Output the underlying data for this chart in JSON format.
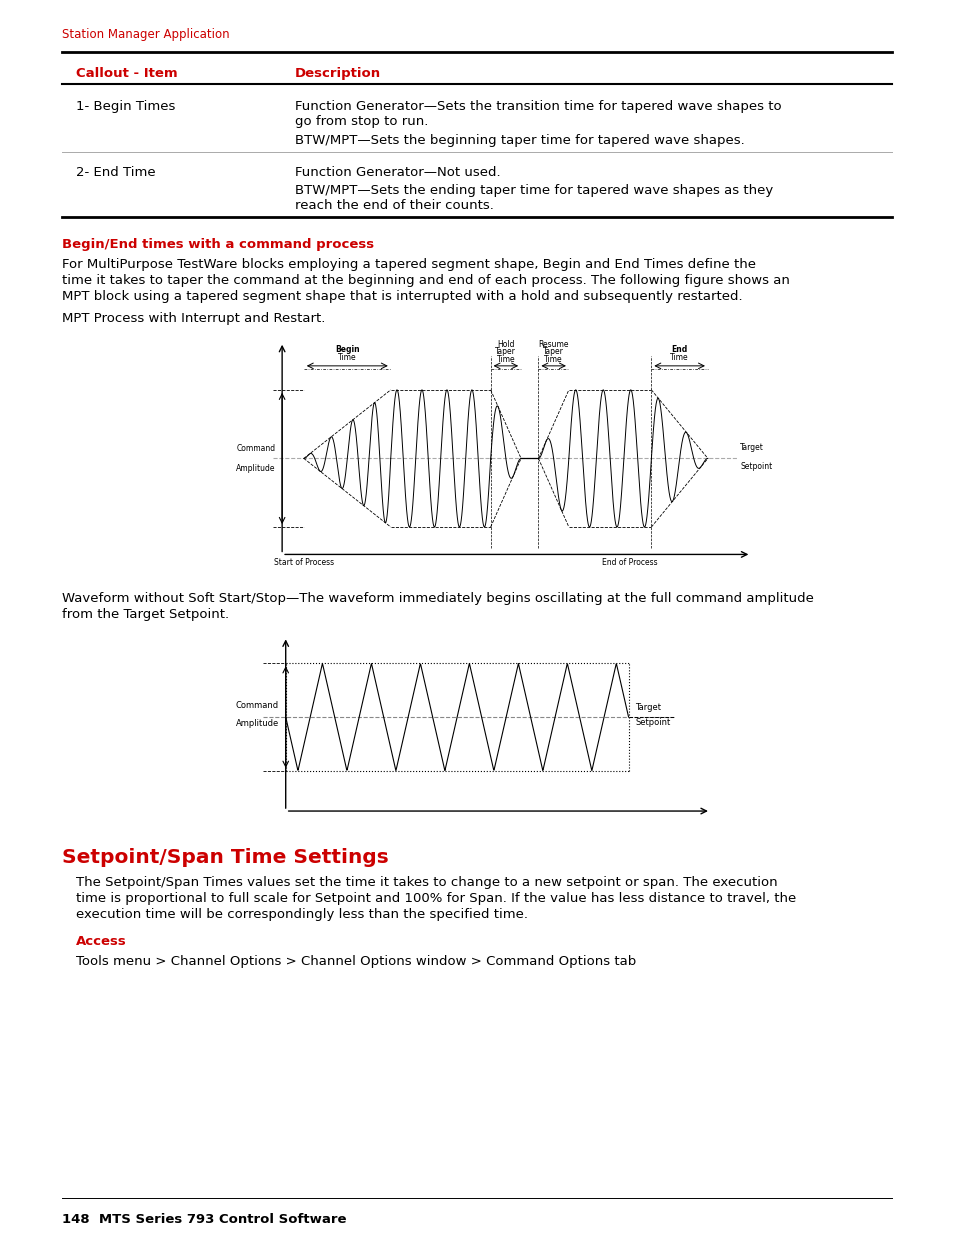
{
  "header_text": "Station Manager Application",
  "header_color": "#cc0000",
  "table_header_col1": "Callout - Item",
  "table_header_col2": "Description",
  "table_header_color": "#cc0000",
  "table_row1_col1": "1- Begin Times",
  "table_row1_col2_line1": "Function Generator—Sets the transition time for tapered wave shapes to",
  "table_row1_col2_line2": "go from stop to run.",
  "table_row1_col2_line3": "BTW/MPT—Sets the beginning taper time for tapered wave shapes.",
  "table_row2_col1": "2- End Time",
  "table_row2_col2_line1": "Function Generator—Not used.",
  "table_row2_col2_line2": "BTW/MPT—Sets the ending taper time for tapered wave shapes as they",
  "table_row2_col2_line3": "reach the end of their counts.",
  "section1_heading": "Begin/End times with a command process",
  "section1_heading_color": "#cc0000",
  "para1_line1": "For MultiPurpose TestWare blocks employing a tapered segment shape, Begin and End Times define the",
  "para1_line2": "time it takes to taper the command at the beginning and end of each process. The following figure shows an",
  "para1_line3": "MPT block using a tapered segment shape that is interrupted with a hold and subsequently restarted.",
  "caption1": "MPT Process with Interrupt and Restart.",
  "waveform_caption_line1": "Waveform without Soft Start/Stop—The waveform immediately begins oscillating at the full command amplitude",
  "waveform_caption_line2": "from the Target Setpoint.",
  "section2_heading": "Setpoint/Span Time Settings",
  "section2_heading_color": "#cc0000",
  "para2_line1": "The Setpoint/Span Times values set the time it takes to change to a new setpoint or span. The execution",
  "para2_line2": "time is proportional to full scale for Setpoint and 100% for Span. If the value has less distance to travel, the",
  "para2_line3": "execution time will be correspondingly less than the specified time.",
  "access_heading": "Access",
  "access_heading_color": "#cc0000",
  "access_text": "Tools menu > Channel Options > Channel Options window > Command Options tab",
  "footer_text": "148  MTS Series 793 Control Software",
  "page_bg": "#ffffff",
  "text_color": "#000000"
}
